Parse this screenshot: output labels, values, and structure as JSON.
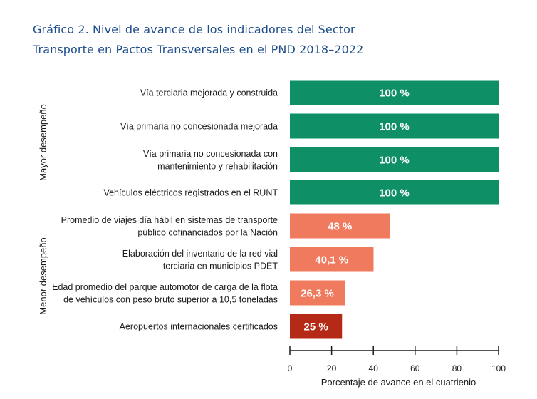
{
  "title_lines": [
    "Gráfico 2. Nivel de avance de los indicadores del Sector",
    "Transporte en Pactos Transversales en el PND 2018–2022"
  ],
  "chart_data": {
    "type": "bar",
    "orientation": "horizontal",
    "title": "Gráfico 2. Nivel de avance de los indicadores del Sector Transporte en Pactos Transversales en el PND 2018–2022",
    "xlabel": "Porcentaje de avance en el cuatrienio",
    "xlim": [
      0,
      100
    ],
    "xticks": [
      0,
      20,
      40,
      60,
      80,
      100
    ],
    "grid": false,
    "groups": [
      {
        "label": "Mayor desempeño",
        "count": 4
      },
      {
        "label": "Menor desempeño",
        "count": 4
      }
    ],
    "categories": [
      [
        "Vía terciaria mejorada y construida"
      ],
      [
        "Vía primaria no concesionada mejorada"
      ],
      [
        "Vía primaria no concesionada con",
        "mantenimiento y rehabilitación"
      ],
      [
        "Vehículos eléctricos registrados en el RUNT"
      ],
      [
        "Promedio de viajes día hábil en sistemas de transporte",
        "público cofinanciados por la Nación"
      ],
      [
        "Elaboración del inventario de la red vial",
        "terciaria en municipios PDET"
      ],
      [
        "Edad promedio del parque automotor de carga de la flota",
        "de vehículos con peso bruto superior a 10,5 toneladas"
      ],
      [
        "Aeropuertos internacionales certificados"
      ]
    ],
    "values": [
      100,
      100,
      100,
      100,
      48,
      40.1,
      26.3,
      25
    ],
    "value_labels": [
      "100 %",
      "100 %",
      "100 %",
      "100 %",
      "48 %",
      "40,1 %",
      "26,3 %",
      "25 %"
    ],
    "colors": [
      "#0e8f66",
      "#0e8f66",
      "#0e8f66",
      "#0e8f66",
      "#f07a5e",
      "#f07a5e",
      "#f07a5e",
      "#b52a16"
    ]
  }
}
